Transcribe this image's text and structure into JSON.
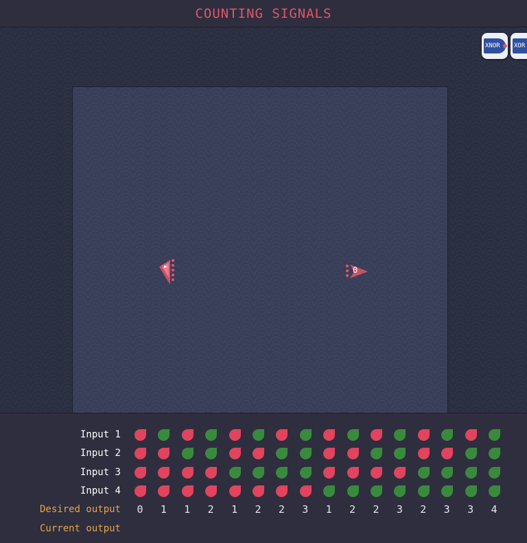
{
  "header": {
    "title": "COUNTING SIGNALS"
  },
  "toolbox": [
    {
      "label": "XNOR",
      "icon": "xnor-gate-icon"
    },
    {
      "label": "XOR",
      "icon": "xor-gate-icon"
    }
  ],
  "board": {
    "input_node": {
      "icon": "input-node-icon"
    },
    "output_node": {
      "icon": "output-node-icon",
      "value": "0"
    }
  },
  "truth_table": {
    "rows": [
      {
        "label": "Input 1",
        "values": [
          0,
          1,
          0,
          1,
          0,
          1,
          0,
          1,
          0,
          1,
          0,
          1,
          0,
          1,
          0,
          1
        ]
      },
      {
        "label": "Input 2",
        "values": [
          0,
          0,
          1,
          1,
          0,
          0,
          1,
          1,
          0,
          0,
          1,
          1,
          0,
          0,
          1,
          1
        ]
      },
      {
        "label": "Input 3",
        "values": [
          0,
          0,
          0,
          0,
          1,
          1,
          1,
          1,
          0,
          0,
          0,
          0,
          1,
          1,
          1,
          1
        ]
      },
      {
        "label": "Input 4",
        "values": [
          0,
          0,
          0,
          0,
          0,
          0,
          0,
          0,
          1,
          1,
          1,
          1,
          1,
          1,
          1,
          1
        ]
      }
    ],
    "desired_label": "Desired output",
    "desired_values": [
      "0",
      "1",
      "1",
      "2",
      "1",
      "2",
      "2",
      "3",
      "1",
      "2",
      "2",
      "3",
      "2",
      "3",
      "3",
      "4"
    ],
    "current_label": "Current output",
    "current_values": []
  },
  "colors": {
    "on": "#3a8a3e",
    "off": "#e0445e",
    "accent": "#e0566b",
    "label_orange": "#e8a44a"
  }
}
